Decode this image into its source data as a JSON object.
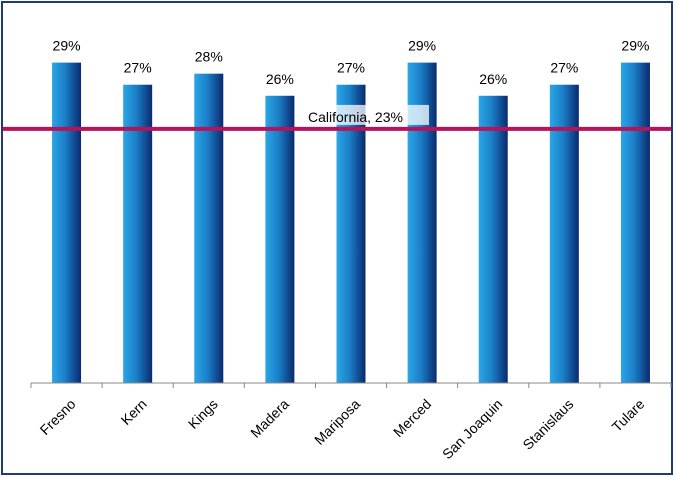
{
  "chart_data": {
    "type": "bar",
    "categories": [
      "Fresno",
      "Kern",
      "Kings",
      "Madera",
      "Mariposa",
      "Merced",
      "San Joaquin",
      "Stanislaus",
      "Tulare"
    ],
    "values": [
      29,
      27,
      28,
      26,
      27,
      29,
      26,
      27,
      29
    ],
    "value_labels": [
      "29%",
      "27%",
      "28%",
      "26%",
      "27%",
      "29%",
      "26%",
      "27%",
      "29%"
    ],
    "reference_line": {
      "value": 23,
      "label": "California, 23%",
      "color": "#b5135a"
    },
    "ylim": [
      0,
      31.5
    ],
    "grid": false,
    "legend": "none",
    "bar_color_light": "#2aa6e6",
    "bar_color_dark": "#0a2a6e",
    "frame_color": "#1f3a7a"
  }
}
